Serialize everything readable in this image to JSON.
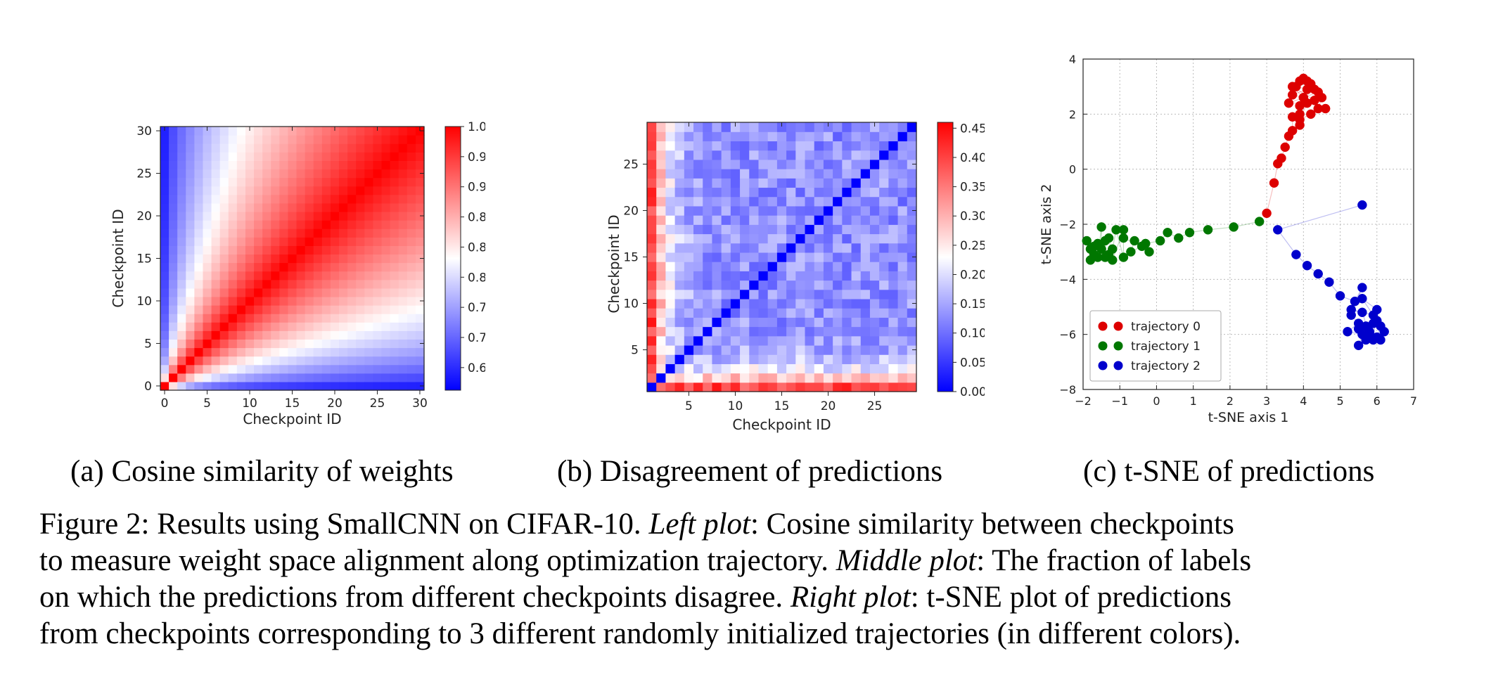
{
  "subcaptions": {
    "a": "(a) Cosine similarity of weights",
    "b": "(b) Disagreement of predictions",
    "c": "(c) t-SNE of predictions"
  },
  "caption": {
    "line1_a": "Figure 2: Results using SmallCNN on CIFAR-10. ",
    "line1_b": "Left plot",
    "line1_c": ": Cosine similarity between checkpoints",
    "line2_a": "to measure weight space alignment along optimization trajectory. ",
    "line2_b": "Middle plot",
    "line2_c": ": The fraction of labels",
    "line3_a": "on which the predictions from different checkpoints disagree. ",
    "line3_b": "Right plot",
    "line3_c": ": t-SNE plot of predictions",
    "line4": "from checkpoints corresponding to 3 different randomly initialized trajectories (in different colors)."
  },
  "chart_data": [
    {
      "type": "heatmap",
      "n": 31,
      "xlabel": "Checkpoint ID",
      "ylabel": "Checkpoint ID",
      "xticks": [
        0,
        5,
        10,
        15,
        20,
        25,
        30
      ],
      "yticks": [
        0,
        5,
        10,
        15,
        20,
        25,
        30
      ],
      "colorbar_ticks": [
        "1.00",
        "0.96",
        "0.92",
        "0.88",
        "0.84",
        "0.80",
        "0.76",
        "0.72",
        "0.68"
      ],
      "vmin": 0.65,
      "vmax": 1.0,
      "colors": {
        "low": "#0000ff",
        "mid": "#ffffff",
        "high": "#ff0000"
      }
    },
    {
      "type": "heatmap",
      "n": 29,
      "xlabel": "Checkpoint ID",
      "ylabel": "Checkpoint ID",
      "xticks": [
        5,
        10,
        15,
        20,
        25
      ],
      "yticks": [
        5,
        10,
        15,
        20,
        25
      ],
      "colorbar_ticks": [
        "0.45",
        "0.40",
        "0.35",
        "0.30",
        "0.25",
        "0.20",
        "0.15",
        "0.10",
        "0.05",
        "0.00"
      ],
      "vmin": 0.0,
      "vmax": 0.46,
      "colors": {
        "low": "#0000ff",
        "mid": "#ffffff",
        "high": "#ff0000"
      }
    },
    {
      "type": "scatter",
      "xlabel": "t-SNE axis 1",
      "ylabel": "t-SNE axis 2",
      "xlim": [
        -2,
        7
      ],
      "ylim": [
        -8,
        4
      ],
      "xticks": [
        "−2",
        "−1",
        "0",
        "1",
        "2",
        "3",
        "4",
        "5",
        "6",
        "7"
      ],
      "yticks": [
        "4",
        "2",
        "0",
        "−2",
        "−4",
        "−6",
        "−8"
      ],
      "grid": true,
      "legend_position": "bottom-left",
      "series": [
        {
          "name": "trajectory 0",
          "color": "#dd0000",
          "points": [
            [
              3.0,
              -1.6
            ],
            [
              3.2,
              -0.5
            ],
            [
              3.3,
              0.2
            ],
            [
              3.4,
              0.4
            ],
            [
              3.5,
              0.8
            ],
            [
              3.6,
              1.2
            ],
            [
              3.7,
              1.4
            ],
            [
              3.7,
              1.9
            ],
            [
              3.9,
              1.6
            ],
            [
              3.9,
              2.0
            ],
            [
              3.9,
              2.3
            ],
            [
              4.0,
              2.6
            ],
            [
              3.7,
              2.7
            ],
            [
              4.1,
              2.9
            ],
            [
              3.8,
              3.0
            ],
            [
              3.9,
              3.2
            ],
            [
              4.0,
              3.3
            ],
            [
              4.1,
              3.2
            ],
            [
              4.2,
              3.1
            ],
            [
              4.3,
              2.9
            ],
            [
              4.0,
              2.6
            ],
            [
              3.7,
              3.0
            ],
            [
              4.3,
              2.5
            ],
            [
              4.5,
              2.6
            ],
            [
              4.4,
              2.2
            ],
            [
              4.6,
              2.2
            ],
            [
              4.2,
              2.0
            ],
            [
              3.9,
              1.8
            ],
            [
              4.1,
              2.4
            ],
            [
              3.6,
              2.4
            ],
            [
              4.4,
              2.8
            ]
          ]
        },
        {
          "name": "trajectory 1",
          "color": "#007700",
          "points": [
            [
              2.8,
              -1.9
            ],
            [
              2.1,
              -2.1
            ],
            [
              1.4,
              -2.2
            ],
            [
              0.9,
              -2.3
            ],
            [
              0.6,
              -2.5
            ],
            [
              0.3,
              -2.3
            ],
            [
              0.1,
              -2.6
            ],
            [
              -0.3,
              -2.7
            ],
            [
              -0.2,
              -3.0
            ],
            [
              -0.6,
              -2.6
            ],
            [
              -0.7,
              -3.0
            ],
            [
              -0.4,
              -2.8
            ],
            [
              -0.9,
              -2.5
            ],
            [
              -0.9,
              -3.2
            ],
            [
              -1.1,
              -2.2
            ],
            [
              -1.2,
              -2.9
            ],
            [
              -1.3,
              -3.1
            ],
            [
              -1.4,
              -3.2
            ],
            [
              -1.4,
              -2.6
            ],
            [
              -1.5,
              -2.9
            ],
            [
              -1.5,
              -2.1
            ],
            [
              -1.6,
              -3.2
            ],
            [
              -1.6,
              -2.7
            ],
            [
              -1.7,
              -2.8
            ],
            [
              -1.8,
              -2.9
            ],
            [
              -1.8,
              -3.3
            ],
            [
              -1.9,
              -2.6
            ],
            [
              -1.7,
              -3.1
            ],
            [
              -1.3,
              -2.5
            ],
            [
              -1.2,
              -3.3
            ],
            [
              -0.9,
              -2.2
            ]
          ]
        },
        {
          "name": "trajectory 2",
          "color": "#0000cc",
          "points": [
            [
              5.6,
              -1.3
            ],
            [
              3.3,
              -2.2
            ],
            [
              3.8,
              -3.1
            ],
            [
              4.1,
              -3.5
            ],
            [
              4.4,
              -3.8
            ],
            [
              4.7,
              -4.1
            ],
            [
              5.0,
              -4.6
            ],
            [
              5.4,
              -4.8
            ],
            [
              5.6,
              -4.3
            ],
            [
              5.3,
              -5.3
            ],
            [
              5.5,
              -5.6
            ],
            [
              5.2,
              -5.9
            ],
            [
              5.6,
              -6.0
            ],
            [
              5.5,
              -6.4
            ],
            [
              5.7,
              -6.2
            ],
            [
              5.8,
              -5.9
            ],
            [
              5.7,
              -5.7
            ],
            [
              5.9,
              -5.6
            ],
            [
              6.0,
              -5.5
            ],
            [
              6.1,
              -5.7
            ],
            [
              6.0,
              -6.1
            ],
            [
              6.1,
              -6.2
            ],
            [
              6.2,
              -5.9
            ],
            [
              5.9,
              -6.2
            ],
            [
              6.0,
              -5.1
            ],
            [
              5.6,
              -4.7
            ],
            [
              5.9,
              -5.3
            ],
            [
              5.3,
              -5.1
            ],
            [
              5.6,
              -5.2
            ],
            [
              5.8,
              -6.0
            ],
            [
              5.5,
              -5.8
            ]
          ]
        }
      ]
    }
  ]
}
